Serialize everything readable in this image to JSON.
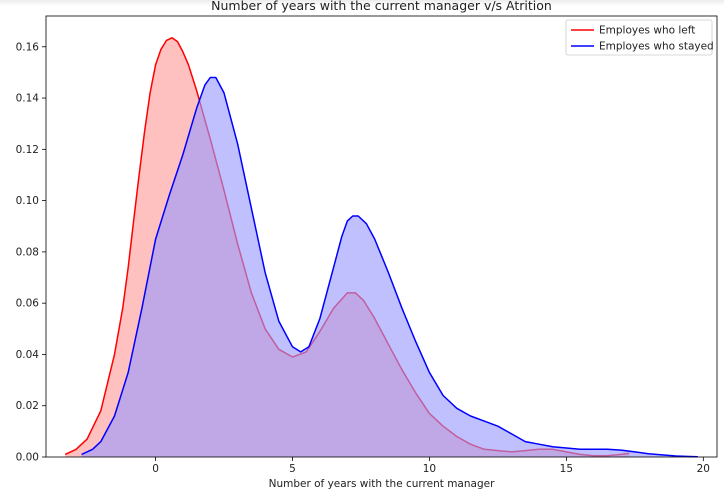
{
  "chart_data": {
    "type": "area",
    "title": "Number of years with the current manager v/s Atrition",
    "xlabel": "Number of years with the current manager",
    "ylabel": "",
    "xlim": [
      -4,
      20.5
    ],
    "ylim": [
      0,
      0.172
    ],
    "xticks": [
      0,
      5,
      10,
      15,
      20
    ],
    "yticks": [
      0.0,
      0.02,
      0.04,
      0.06,
      0.08,
      0.1,
      0.12,
      0.14,
      0.16
    ],
    "grid": false,
    "legend_position": "top-right",
    "series": [
      {
        "name": "Employes who left",
        "line_color": "#ff0000",
        "fill_color": "#ff9a9a",
        "x": [
          -3.3,
          -2.9,
          -2.5,
          -2.0,
          -1.5,
          -1.2,
          -1.0,
          -0.8,
          -0.6,
          -0.4,
          -0.2,
          0.0,
          0.2,
          0.4,
          0.6,
          0.8,
          1.0,
          1.2,
          1.5,
          2.0,
          2.5,
          3.0,
          3.5,
          4.0,
          4.5,
          5.0,
          5.5,
          6.0,
          6.5,
          7.0,
          7.3,
          7.6,
          8.0,
          8.5,
          9.0,
          9.5,
          10.0,
          10.5,
          11.0,
          11.5,
          12.0,
          12.5,
          13.0,
          13.5,
          14.0,
          14.5,
          15.0,
          15.5,
          16.0,
          16.5,
          17.0,
          17.3
        ],
        "y": [
          0.001,
          0.003,
          0.007,
          0.018,
          0.04,
          0.058,
          0.074,
          0.092,
          0.11,
          0.127,
          0.142,
          0.153,
          0.159,
          0.1625,
          0.1635,
          0.162,
          0.158,
          0.153,
          0.143,
          0.124,
          0.104,
          0.083,
          0.064,
          0.05,
          0.042,
          0.039,
          0.041,
          0.049,
          0.058,
          0.064,
          0.064,
          0.061,
          0.054,
          0.044,
          0.034,
          0.025,
          0.017,
          0.012,
          0.008,
          0.005,
          0.003,
          0.0025,
          0.002,
          0.0025,
          0.003,
          0.003,
          0.002,
          0.001,
          0.0005,
          0.0005,
          0.001,
          0.0015
        ]
      },
      {
        "name": "Employes who stayed",
        "line_color": "#0000ff",
        "fill_color": "#9a9aff",
        "x": [
          -2.7,
          -2.3,
          -2.0,
          -1.5,
          -1.0,
          -0.5,
          0.0,
          0.5,
          1.0,
          1.5,
          1.8,
          2.0,
          2.2,
          2.5,
          3.0,
          3.5,
          4.0,
          4.5,
          5.0,
          5.3,
          5.6,
          6.0,
          6.5,
          6.8,
          7.0,
          7.2,
          7.4,
          7.7,
          8.0,
          8.5,
          9.0,
          9.5,
          10.0,
          10.5,
          11.0,
          11.5,
          12.0,
          12.5,
          13.0,
          13.5,
          14.0,
          14.5,
          15.0,
          15.5,
          16.0,
          16.5,
          17.0,
          17.5,
          18.0,
          18.5,
          19.0,
          19.5,
          19.8
        ],
        "y": [
          0.001,
          0.003,
          0.006,
          0.016,
          0.033,
          0.058,
          0.085,
          0.102,
          0.118,
          0.136,
          0.145,
          0.148,
          0.148,
          0.142,
          0.122,
          0.097,
          0.072,
          0.053,
          0.043,
          0.041,
          0.043,
          0.054,
          0.074,
          0.086,
          0.092,
          0.094,
          0.094,
          0.091,
          0.085,
          0.072,
          0.058,
          0.045,
          0.033,
          0.024,
          0.019,
          0.016,
          0.014,
          0.012,
          0.009,
          0.006,
          0.005,
          0.004,
          0.0035,
          0.003,
          0.003,
          0.003,
          0.0027,
          0.002,
          0.0013,
          0.0008,
          0.0004,
          0.0002,
          0.0001
        ]
      }
    ]
  }
}
